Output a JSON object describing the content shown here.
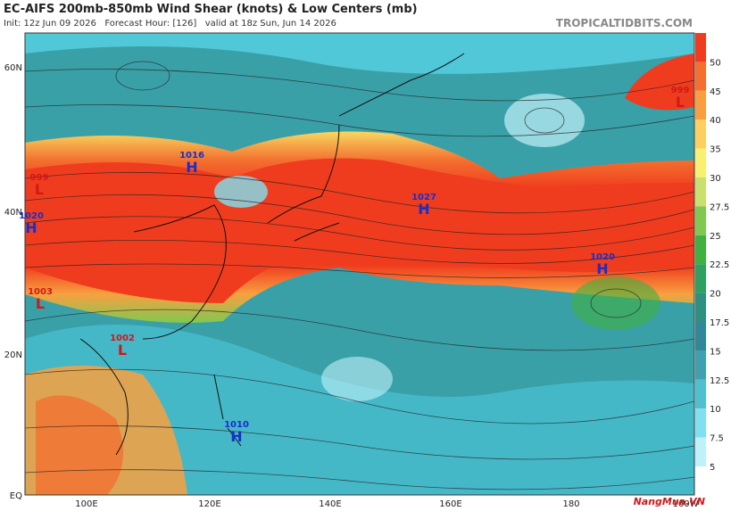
{
  "header": {
    "title": "EC-AIFS 200mb-850mb Wind Shear (knots) & Low Centers (mb)",
    "subtitle": "Init: 12z Jun 09 2026   Forecast Hour: [126]   valid at 18z Sun, Jun 14 2026",
    "brand": "TROPICALTIDBITS.COM"
  },
  "map": {
    "lat_labels": [
      "60N",
      "40N",
      "20N",
      "EQ"
    ],
    "lon_labels": [
      "100E",
      "120E",
      "140E",
      "160E",
      "180",
      "160W"
    ],
    "centers": [
      {
        "pressure": "999",
        "type": "L"
      },
      {
        "pressure": "1016",
        "type": "H"
      },
      {
        "pressure": "999",
        "type": "L"
      },
      {
        "pressure": "1020",
        "type": "H"
      },
      {
        "pressure": "1027",
        "type": "H"
      },
      {
        "pressure": "1020",
        "type": "H"
      },
      {
        "pressure": "1003",
        "type": "L"
      },
      {
        "pressure": "1002",
        "type": "L"
      },
      {
        "pressure": "1010",
        "type": "H"
      }
    ]
  },
  "colorbar": {
    "labels": [
      "50",
      "45",
      "40",
      "35",
      "30",
      "27.5",
      "25",
      "22.5",
      "20",
      "17.5",
      "15",
      "12.5",
      "10",
      "7.5",
      "5"
    ]
  },
  "watermark": "NangMua.VN"
}
